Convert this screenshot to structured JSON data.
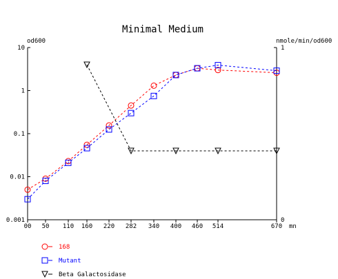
{
  "chart_data": {
    "type": "line",
    "title": "Minimal Medium",
    "left_axis_label": "od600",
    "right_axis_label": "nmole/min/od600",
    "x_unit": "mn",
    "x_scale": "categorical-like linear",
    "x_ticks": [
      "00",
      "50",
      "110",
      "160",
      "220",
      "282",
      "340",
      "400",
      "460",
      "514",
      "670"
    ],
    "y_left_scale": "log",
    "y_left_ticks": [
      "10",
      "1",
      "0.1",
      "0.01",
      "0.001"
    ],
    "y_left_lim": [
      0.001,
      10
    ],
    "y_right_ticks": [
      "1",
      "0"
    ],
    "y_right_lim": [
      0,
      1
    ],
    "grid": false,
    "legend_position": "bottom-left",
    "series": [
      {
        "name": "168",
        "axis": "left",
        "marker": "circle",
        "line": "dashed",
        "color": "#ff0000",
        "x": [
          0,
          50,
          110,
          160,
          220,
          282,
          340,
          400,
          460,
          514,
          670
        ],
        "y": [
          0.005,
          0.009,
          0.023,
          0.055,
          0.155,
          0.45,
          1.3,
          2.3,
          3.3,
          3.0,
          2.6
        ]
      },
      {
        "name": "Mutant",
        "axis": "left",
        "marker": "square",
        "line": "dashed",
        "color": "#0000ff",
        "x": [
          0,
          50,
          110,
          160,
          220,
          282,
          340,
          400,
          460,
          514,
          670
        ],
        "y": [
          0.003,
          0.008,
          0.021,
          0.046,
          0.125,
          0.3,
          0.75,
          2.3,
          3.3,
          3.9,
          2.9
        ]
      },
      {
        "name": "Beta Galactosidase",
        "axis": "right",
        "marker": "triangle-down",
        "line": "dashed",
        "color": "#000000",
        "x": [
          160,
          282,
          400,
          514,
          670
        ],
        "y": [
          0.9,
          0.4,
          0.4,
          0.4,
          0.4
        ]
      }
    ]
  }
}
